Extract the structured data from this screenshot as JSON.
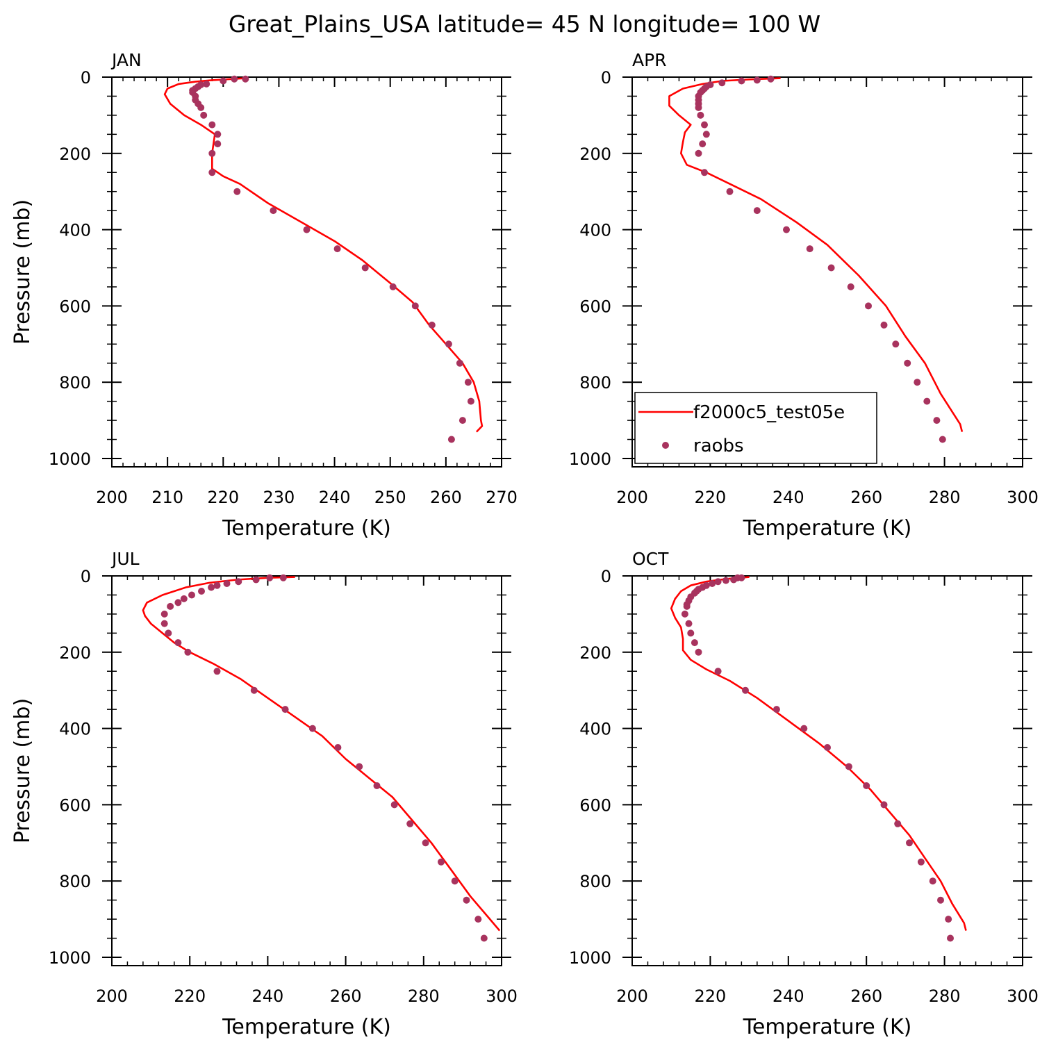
{
  "title": "Great_Plains_USA  latitude= 45 N longitude= 100 W",
  "colors": {
    "model": "#ff0000",
    "obs": "#a8335e",
    "axis": "#000000"
  },
  "legend": {
    "model_label": "f2000c5_test05e",
    "obs_label": "raobs",
    "panel": "APR",
    "placement": "lower-left"
  },
  "chart_data": [
    {
      "type": "line",
      "panel": "JAN",
      "xlabel": "Temperature (K)",
      "ylabel": "Pressure (mb)",
      "xlim": [
        200,
        270
      ],
      "ylim": [
        1000,
        0
      ],
      "xticks": [
        200,
        210,
        220,
        230,
        240,
        250,
        260,
        270
      ],
      "yticks": [
        0,
        200,
        400,
        600,
        800,
        1000
      ],
      "series": [
        {
          "name": "f2000c5_test05e",
          "kind": "line",
          "points": [
            [
              224,
              3
            ],
            [
              218,
              8
            ],
            [
              215,
              12
            ],
            [
              212,
              18
            ],
            [
              210,
              30
            ],
            [
              209.5,
              45
            ],
            [
              210.5,
              70
            ],
            [
              213,
              100
            ],
            [
              216,
              125
            ],
            [
              218.5,
              150
            ],
            [
              218,
              200
            ],
            [
              218,
              240
            ],
            [
              220,
              260
            ],
            [
              223,
              280
            ],
            [
              228,
              330
            ],
            [
              234,
              380
            ],
            [
              240,
              430
            ],
            [
              245,
              480
            ],
            [
              250,
              540
            ],
            [
              254,
              590
            ],
            [
              257,
              650
            ],
            [
              260,
              700
            ],
            [
              263,
              750
            ],
            [
              265,
              800
            ],
            [
              266,
              850
            ],
            [
              266.3,
              900
            ],
            [
              266.5,
              915
            ],
            [
              265.5,
              930
            ]
          ]
        },
        {
          "name": "raobs",
          "kind": "scatter",
          "points": [
            [
              224,
              5
            ],
            [
              222,
              5
            ],
            [
              220,
              10
            ],
            [
              217,
              18
            ],
            [
              216,
              20
            ],
            [
              215.5,
              25
            ],
            [
              215,
              30
            ],
            [
              214.5,
              35
            ],
            [
              214.5,
              40
            ],
            [
              215,
              50
            ],
            [
              215,
              60
            ],
            [
              215.5,
              70
            ],
            [
              216,
              80
            ],
            [
              216.5,
              100
            ],
            [
              218,
              125
            ],
            [
              219,
              150
            ],
            [
              219,
              175
            ],
            [
              218,
              200
            ],
            [
              218,
              250
            ],
            [
              222.5,
              300
            ],
            [
              229,
              350
            ],
            [
              235,
              400
            ],
            [
              240.5,
              450
            ],
            [
              245.5,
              500
            ],
            [
              250.5,
              550
            ],
            [
              254.5,
              600
            ],
            [
              257.5,
              650
            ],
            [
              260.5,
              700
            ],
            [
              262.5,
              750
            ],
            [
              264,
              800
            ],
            [
              264.5,
              850
            ],
            [
              263,
              900
            ],
            [
              261,
              950
            ]
          ]
        }
      ]
    },
    {
      "type": "line",
      "panel": "APR",
      "xlabel": "Temperature (K)",
      "ylabel": "",
      "xlim": [
        200,
        300
      ],
      "ylim": [
        1000,
        0
      ],
      "xticks": [
        200,
        220,
        240,
        260,
        280,
        300
      ],
      "yticks": [
        0,
        200,
        400,
        600,
        800,
        1000
      ],
      "series": [
        {
          "name": "f2000c5_test05e",
          "kind": "line",
          "points": [
            [
              238,
              3
            ],
            [
              230,
              6
            ],
            [
              223,
              10
            ],
            [
              218,
              18
            ],
            [
              213,
              30
            ],
            [
              209.5,
              50
            ],
            [
              209.5,
              75
            ],
            [
              212,
              100
            ],
            [
              215,
              125
            ],
            [
              213.5,
              145
            ],
            [
              213,
              170
            ],
            [
              212.5,
              200
            ],
            [
              214,
              230
            ],
            [
              219,
              250
            ],
            [
              225,
              280
            ],
            [
              233,
              320
            ],
            [
              242,
              380
            ],
            [
              250,
              440
            ],
            [
              258,
              520
            ],
            [
              265,
              600
            ],
            [
              270,
              680
            ],
            [
              275,
              750
            ],
            [
              279,
              830
            ],
            [
              284,
              910
            ],
            [
              284.5,
              930
            ]
          ]
        },
        {
          "name": "raobs",
          "kind": "scatter",
          "points": [
            [
              235.5,
              5
            ],
            [
              232,
              8
            ],
            [
              228,
              10
            ],
            [
              223,
              15
            ],
            [
              220,
              20
            ],
            [
              219,
              25
            ],
            [
              218.5,
              30
            ],
            [
              218,
              35
            ],
            [
              217.5,
              40
            ],
            [
              217,
              50
            ],
            [
              217,
              60
            ],
            [
              217,
              70
            ],
            [
              217,
              80
            ],
            [
              217.5,
              100
            ],
            [
              218.5,
              125
            ],
            [
              219,
              150
            ],
            [
              218,
              175
            ],
            [
              217,
              200
            ],
            [
              218.5,
              250
            ],
            [
              225,
              300
            ],
            [
              232,
              350
            ],
            [
              239.5,
              400
            ],
            [
              245.5,
              450
            ],
            [
              251,
              500
            ],
            [
              256,
              550
            ],
            [
              260.5,
              600
            ],
            [
              264.5,
              650
            ],
            [
              267.5,
              700
            ],
            [
              270.5,
              750
            ],
            [
              273,
              800
            ],
            [
              275.5,
              850
            ],
            [
              278,
              900
            ],
            [
              279.5,
              950
            ]
          ]
        }
      ]
    },
    {
      "type": "line",
      "panel": "JUL",
      "xlabel": "Temperature (K)",
      "ylabel": "Pressure (mb)",
      "xlim": [
        200,
        300
      ],
      "ylim": [
        1000,
        0
      ],
      "xticks": [
        200,
        220,
        240,
        260,
        280,
        300
      ],
      "yticks": [
        0,
        200,
        400,
        600,
        800,
        1000
      ],
      "series": [
        {
          "name": "f2000c5_test05e",
          "kind": "line",
          "points": [
            [
              247,
              3
            ],
            [
              240,
              5
            ],
            [
              232,
              10
            ],
            [
              225,
              18
            ],
            [
              219,
              30
            ],
            [
              213,
              50
            ],
            [
              209,
              70
            ],
            [
              208,
              90
            ],
            [
              208.5,
              105
            ],
            [
              210,
              125
            ],
            [
              213,
              150
            ],
            [
              216,
              175
            ],
            [
              220,
              200
            ],
            [
              226,
              230
            ],
            [
              233,
              270
            ],
            [
              240,
              320
            ],
            [
              247,
              370
            ],
            [
              254,
              420
            ],
            [
              260,
              480
            ],
            [
              266,
              530
            ],
            [
              272,
              580
            ],
            [
              277,
              640
            ],
            [
              282,
              700
            ],
            [
              287,
              770
            ],
            [
              292,
              840
            ],
            [
              297,
              900
            ],
            [
              299.5,
              930
            ]
          ]
        },
        {
          "name": "raobs",
          "kind": "scatter",
          "points": [
            [
              244,
              5
            ],
            [
              240.5,
              5
            ],
            [
              237,
              10
            ],
            [
              232.5,
              15
            ],
            [
              229.5,
              20
            ],
            [
              227,
              25
            ],
            [
              225.5,
              30
            ],
            [
              223,
              40
            ],
            [
              220.5,
              50
            ],
            [
              218.5,
              60
            ],
            [
              217,
              70
            ],
            [
              215,
              80
            ],
            [
              213.5,
              100
            ],
            [
              213.5,
              125
            ],
            [
              214.5,
              150
            ],
            [
              217,
              175
            ],
            [
              219.5,
              200
            ],
            [
              227,
              250
            ],
            [
              236.5,
              300
            ],
            [
              244.5,
              350
            ],
            [
              251.5,
              400
            ],
            [
              258,
              450
            ],
            [
              263.5,
              500
            ],
            [
              268,
              550
            ],
            [
              272.5,
              600
            ],
            [
              276.5,
              650
            ],
            [
              280.5,
              700
            ],
            [
              284.5,
              750
            ],
            [
              288,
              800
            ],
            [
              291,
              850
            ],
            [
              294,
              900
            ],
            [
              295.5,
              950
            ]
          ]
        }
      ]
    },
    {
      "type": "line",
      "panel": "OCT",
      "xlabel": "Temperature (K)",
      "ylabel": "",
      "xlim": [
        200,
        300
      ],
      "ylim": [
        1000,
        0
      ],
      "xticks": [
        200,
        220,
        240,
        260,
        280,
        300
      ],
      "yticks": [
        0,
        200,
        400,
        600,
        800,
        1000
      ],
      "series": [
        {
          "name": "f2000c5_test05e",
          "kind": "line",
          "points": [
            [
              230,
              3
            ],
            [
              224,
              8
            ],
            [
              219,
              15
            ],
            [
              215,
              25
            ],
            [
              212.5,
              40
            ],
            [
              211,
              60
            ],
            [
              210,
              85
            ],
            [
              211,
              110
            ],
            [
              212.5,
              135
            ],
            [
              213,
              165
            ],
            [
              213,
              195
            ],
            [
              215,
              220
            ],
            [
              219,
              245
            ],
            [
              225,
              275
            ],
            [
              232,
              320
            ],
            [
              240,
              380
            ],
            [
              248,
              440
            ],
            [
              255,
              500
            ],
            [
              261,
              560
            ],
            [
              266,
              620
            ],
            [
              271,
              680
            ],
            [
              275,
              740
            ],
            [
              279,
              800
            ],
            [
              282,
              860
            ],
            [
              285,
              910
            ],
            [
              285.5,
              930
            ]
          ]
        },
        {
          "name": "raobs",
          "kind": "scatter",
          "points": [
            [
              228,
              5
            ],
            [
              227,
              5
            ],
            [
              226,
              10
            ],
            [
              224,
              12
            ],
            [
              222,
              15
            ],
            [
              220.5,
              20
            ],
            [
              219,
              25
            ],
            [
              218,
              30
            ],
            [
              217,
              35
            ],
            [
              216.5,
              40
            ],
            [
              216,
              45
            ],
            [
              215,
              55
            ],
            [
              214.5,
              65
            ],
            [
              214,
              75
            ],
            [
              214,
              80
            ],
            [
              213.5,
              100
            ],
            [
              214.5,
              125
            ],
            [
              215,
              150
            ],
            [
              216,
              175
            ],
            [
              217,
              200
            ],
            [
              222,
              250
            ],
            [
              229,
              300
            ],
            [
              237,
              350
            ],
            [
              244,
              400
            ],
            [
              250,
              450
            ],
            [
              255.5,
              500
            ],
            [
              260,
              550
            ],
            [
              264.5,
              600
            ],
            [
              268,
              650
            ],
            [
              271,
              700
            ],
            [
              274,
              750
            ],
            [
              277,
              800
            ],
            [
              279,
              850
            ],
            [
              281,
              900
            ],
            [
              281.5,
              950
            ]
          ]
        }
      ]
    }
  ]
}
